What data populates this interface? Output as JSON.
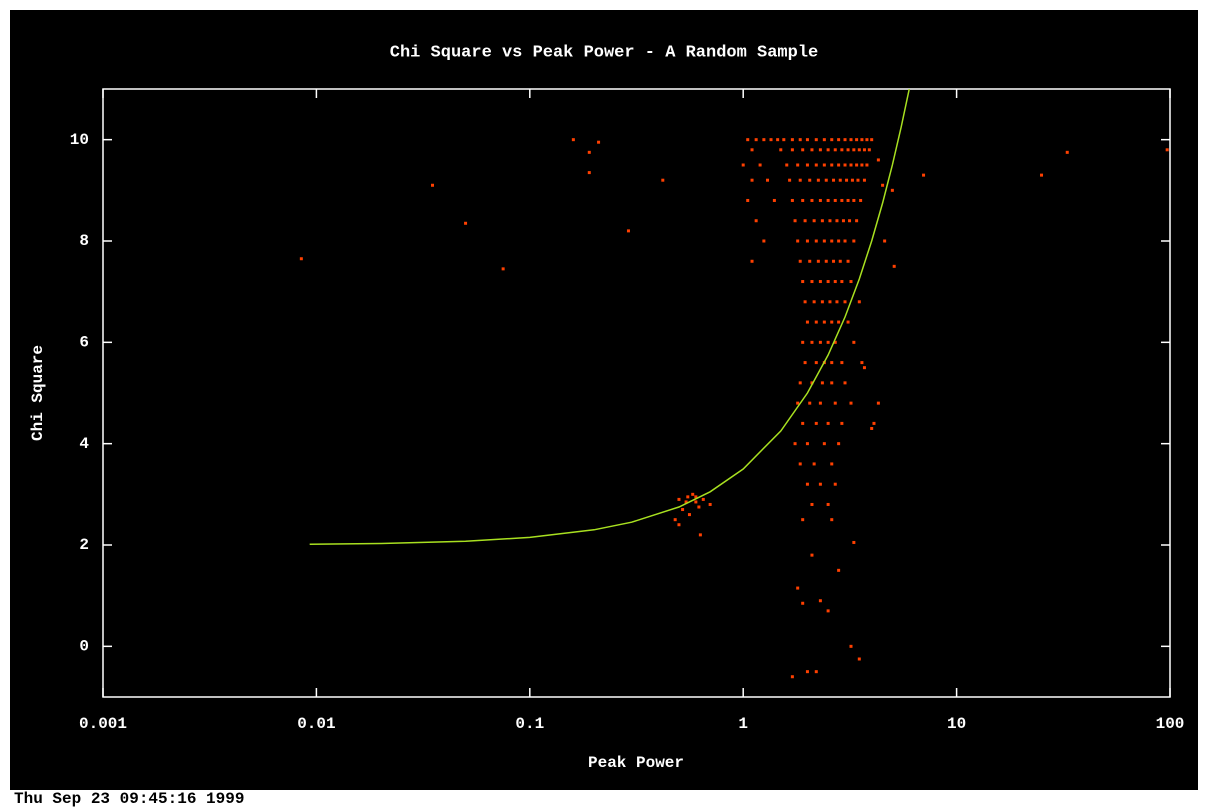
{
  "chart_data": {
    "type": "scatter",
    "title": "Chi Square vs Peak Power - A Random Sample",
    "x_label": "Peak Power",
    "y_label": "Chi Square",
    "timestamp": "Thu Sep 23 09:45:16 1999",
    "xscale": "log",
    "xlim": [
      0.001,
      100
    ],
    "xticks": [
      0.001,
      0.01,
      0.1,
      1,
      10,
      100
    ],
    "ylim": [
      -1,
      11
    ],
    "yticks": [
      0,
      2,
      4,
      6,
      8,
      10
    ],
    "grid": false,
    "series": [
      {
        "type": "scatter",
        "color": "#ff4000",
        "x": [
          0.0085,
          0.035,
          0.05,
          0.075,
          0.16,
          0.19,
          0.21,
          0.19,
          0.29,
          0.42,
          4.3,
          4.5,
          5.0,
          5.1,
          7,
          25,
          33,
          97,
          3.5,
          3.2,
          2.0,
          1.7,
          2.2,
          2.5,
          2.3,
          1.9,
          3.3,
          2.8,
          2.1,
          1.8,
          4.0,
          4.3,
          3.7,
          0.5,
          0.55,
          0.6,
          0.65,
          0.58,
          0.62,
          0.52,
          0.48,
          0.7,
          0.56,
          0.63,
          0.5,
          0.6,
          0.54,
          1.05,
          1.15,
          1.25,
          1.35,
          1.45,
          1.55,
          1.7,
          1.85,
          2.0,
          2.2,
          2.4,
          2.6,
          2.8,
          3.0,
          3.2,
          3.4,
          3.6,
          3.8,
          4.0,
          1.1,
          1.5,
          1.7,
          1.9,
          2.1,
          2.3,
          2.5,
          2.7,
          2.9,
          3.1,
          3.3,
          3.5,
          3.7,
          3.9,
          1.0,
          1.2,
          1.6,
          1.8,
          2.0,
          2.2,
          2.4,
          2.6,
          2.8,
          3.0,
          3.2,
          3.4,
          3.6,
          3.8,
          1.1,
          1.3,
          1.65,
          1.85,
          2.05,
          2.25,
          2.45,
          2.65,
          2.85,
          3.05,
          3.25,
          3.45,
          3.7,
          1.05,
          1.4,
          1.7,
          1.9,
          2.1,
          2.3,
          2.5,
          2.7,
          2.9,
          3.1,
          3.3,
          3.55,
          1.15,
          1.75,
          1.95,
          2.15,
          2.35,
          2.55,
          2.75,
          2.95,
          3.15,
          3.4,
          1.25,
          1.8,
          2.0,
          2.2,
          2.4,
          2.6,
          2.8,
          3.0,
          3.3,
          4.6,
          1.1,
          1.85,
          2.05,
          2.25,
          2.45,
          2.65,
          2.85,
          3.1,
          1.9,
          2.1,
          2.3,
          2.5,
          2.7,
          2.9,
          3.2,
          1.95,
          2.15,
          2.35,
          2.55,
          2.75,
          3.0,
          3.5,
          2.0,
          2.2,
          2.4,
          2.6,
          2.8,
          3.1,
          1.9,
          2.1,
          2.3,
          2.5,
          2.7,
          3.3,
          1.95,
          2.2,
          2.4,
          2.6,
          2.9,
          3.6,
          1.85,
          2.1,
          2.35,
          2.6,
          3.0,
          1.8,
          2.05,
          2.3,
          2.7,
          3.2,
          1.9,
          2.2,
          2.5,
          2.9,
          4.1,
          1.75,
          2.0,
          2.4,
          2.8,
          1.85,
          2.15,
          2.6,
          2.0,
          2.3,
          2.7,
          2.1,
          2.5,
          1.9,
          2.6
        ],
        "values": [
          7.65,
          9.1,
          8.35,
          7.45,
          10,
          9.75,
          9.95,
          9.35,
          8.2,
          9.2,
          9.6,
          9.1,
          9.0,
          7.5,
          9.3,
          9.3,
          9.75,
          9.8,
          -0.25,
          0,
          -0.5,
          -0.6,
          -0.5,
          0.7,
          0.9,
          0.85,
          2.05,
          1.5,
          1.8,
          1.15,
          4.3,
          4.8,
          5.5,
          2.9,
          2.95,
          2.85,
          2.9,
          3.0,
          2.75,
          2.7,
          2.5,
          2.8,
          2.6,
          2.2,
          2.4,
          2.95,
          2.85,
          10,
          10,
          10,
          10,
          10,
          10,
          10,
          10,
          10,
          10,
          10,
          10,
          10,
          10,
          10,
          10,
          10,
          10,
          10,
          9.8,
          9.8,
          9.8,
          9.8,
          9.8,
          9.8,
          9.8,
          9.8,
          9.8,
          9.8,
          9.8,
          9.8,
          9.8,
          9.8,
          9.5,
          9.5,
          9.5,
          9.5,
          9.5,
          9.5,
          9.5,
          9.5,
          9.5,
          9.5,
          9.5,
          9.5,
          9.5,
          9.5,
          9.2,
          9.2,
          9.2,
          9.2,
          9.2,
          9.2,
          9.2,
          9.2,
          9.2,
          9.2,
          9.2,
          9.2,
          9.2,
          8.8,
          8.8,
          8.8,
          8.8,
          8.8,
          8.8,
          8.8,
          8.8,
          8.8,
          8.8,
          8.8,
          8.8,
          8.4,
          8.4,
          8.4,
          8.4,
          8.4,
          8.4,
          8.4,
          8.4,
          8.4,
          8.4,
          8.0,
          8.0,
          8.0,
          8.0,
          8.0,
          8.0,
          8.0,
          8.0,
          8.0,
          8.0,
          7.6,
          7.6,
          7.6,
          7.6,
          7.6,
          7.6,
          7.6,
          7.6,
          7.2,
          7.2,
          7.2,
          7.2,
          7.2,
          7.2,
          7.2,
          6.8,
          6.8,
          6.8,
          6.8,
          6.8,
          6.8,
          6.8,
          6.4,
          6.4,
          6.4,
          6.4,
          6.4,
          6.4,
          6.0,
          6.0,
          6.0,
          6.0,
          6.0,
          6.0,
          5.6,
          5.6,
          5.6,
          5.6,
          5.6,
          5.6,
          5.2,
          5.2,
          5.2,
          5.2,
          5.2,
          4.8,
          4.8,
          4.8,
          4.8,
          4.8,
          4.4,
          4.4,
          4.4,
          4.4,
          4.4,
          4.0,
          4.0,
          4.0,
          4.0,
          3.6,
          3.6,
          3.6,
          3.2,
          3.2,
          3.2,
          2.8,
          2.8,
          2.5,
          2.5
        ]
      },
      {
        "type": "line",
        "color": "#a8e020",
        "x": [
          0.0093,
          0.02,
          0.05,
          0.1,
          0.2,
          0.3,
          0.5,
          0.7,
          1,
          1.5,
          2,
          2.5,
          3,
          3.5,
          4,
          4.5,
          5,
          5.5,
          6
        ],
        "values": [
          2.014,
          2.03,
          2.075,
          2.15,
          2.3,
          2.45,
          2.75,
          3.05,
          3.5,
          4.25,
          5,
          5.75,
          6.5,
          7.25,
          8,
          8.75,
          9.5,
          10.25,
          11
        ]
      }
    ]
  }
}
